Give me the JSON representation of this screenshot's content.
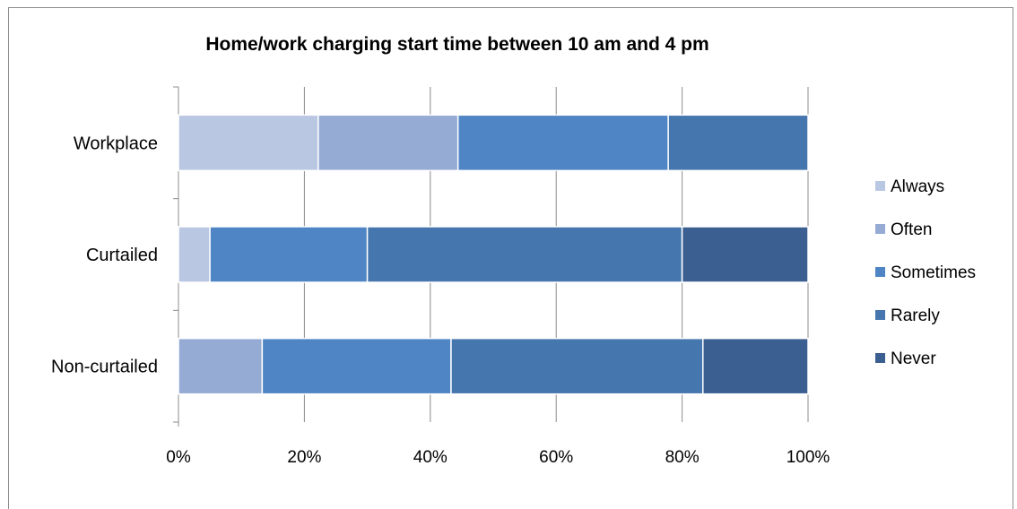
{
  "chart_data": {
    "type": "bar",
    "orientation": "horizontal",
    "stacked": "percent",
    "title": "Home/work charging start time between 10 am and 4 pm",
    "categories": [
      "Workplace",
      "Curtailed",
      "Non-curtailed"
    ],
    "series": [
      {
        "name": "Always",
        "color": "#bac7e2",
        "values": [
          22.2,
          5,
          0
        ]
      },
      {
        "name": "Often",
        "color": "#95abd4",
        "values": [
          22.2,
          0,
          13.3
        ]
      },
      {
        "name": "Sometimes",
        "color": "#4f85c4",
        "values": [
          33.4,
          25,
          30
        ]
      },
      {
        "name": "Rarely",
        "color": "#4576ad",
        "values": [
          22.2,
          50,
          40
        ]
      },
      {
        "name": "Never",
        "color": "#3b5f91",
        "values": [
          0,
          20,
          16.7
        ]
      }
    ],
    "xlim": [
      0,
      100
    ],
    "xticks": [
      "0%",
      "20%",
      "40%",
      "60%",
      "80%",
      "100%"
    ],
    "xticks_values": [
      0,
      20,
      40,
      60,
      80,
      100
    ],
    "grid": "vertical",
    "legend": "right"
  }
}
